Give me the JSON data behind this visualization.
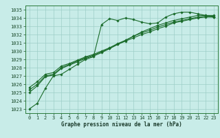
{
  "title": "Graphe pression niveau de la mer (hPa)",
  "background_color": "#c8ece8",
  "grid_color": "#9ecec8",
  "line_color": "#1a6b2a",
  "marker": "D",
  "markersize": 1.8,
  "linewidth": 0.8,
  "xlim": [
    -0.5,
    23.5
  ],
  "ylim": [
    1022.5,
    1035.5
  ],
  "xticks": [
    0,
    1,
    2,
    3,
    4,
    5,
    6,
    7,
    8,
    9,
    10,
    11,
    12,
    13,
    14,
    15,
    16,
    17,
    18,
    19,
    20,
    21,
    22,
    23
  ],
  "yticks": [
    1023,
    1024,
    1025,
    1026,
    1027,
    1028,
    1029,
    1030,
    1031,
    1032,
    1033,
    1034,
    1035
  ],
  "tick_fontsize": 5,
  "xlabel_fontsize": 5.5,
  "series": [
    [
      1023.0,
      1023.7,
      1025.5,
      1027.0,
      1027.2,
      1027.8,
      1028.4,
      1029.0,
      1029.3,
      1033.2,
      1033.9,
      1033.7,
      1034.0,
      1033.8,
      1033.5,
      1033.3,
      1033.4,
      1034.1,
      1034.5,
      1034.7,
      1034.7,
      1034.5,
      1034.3,
      1034.1
    ],
    [
      1025.0,
      1025.8,
      1026.9,
      1027.1,
      1027.9,
      1028.3,
      1028.7,
      1029.1,
      1029.4,
      1029.8,
      1030.3,
      1030.8,
      1031.2,
      1031.6,
      1032.0,
      1032.3,
      1032.7,
      1033.0,
      1033.4,
      1033.6,
      1033.8,
      1034.0,
      1034.1,
      1034.1
    ],
    [
      1025.3,
      1026.0,
      1027.0,
      1027.2,
      1028.0,
      1028.4,
      1028.8,
      1029.2,
      1029.5,
      1029.9,
      1030.3,
      1030.8,
      1031.3,
      1031.8,
      1032.2,
      1032.5,
      1032.9,
      1033.2,
      1033.5,
      1033.7,
      1033.9,
      1034.1,
      1034.2,
      1034.2
    ],
    [
      1025.6,
      1026.3,
      1027.2,
      1027.4,
      1028.2,
      1028.5,
      1028.9,
      1029.3,
      1029.6,
      1030.0,
      1030.4,
      1030.9,
      1031.3,
      1031.8,
      1032.3,
      1032.7,
      1033.1,
      1033.4,
      1033.7,
      1033.9,
      1034.1,
      1034.3,
      1034.3,
      1034.3
    ]
  ]
}
